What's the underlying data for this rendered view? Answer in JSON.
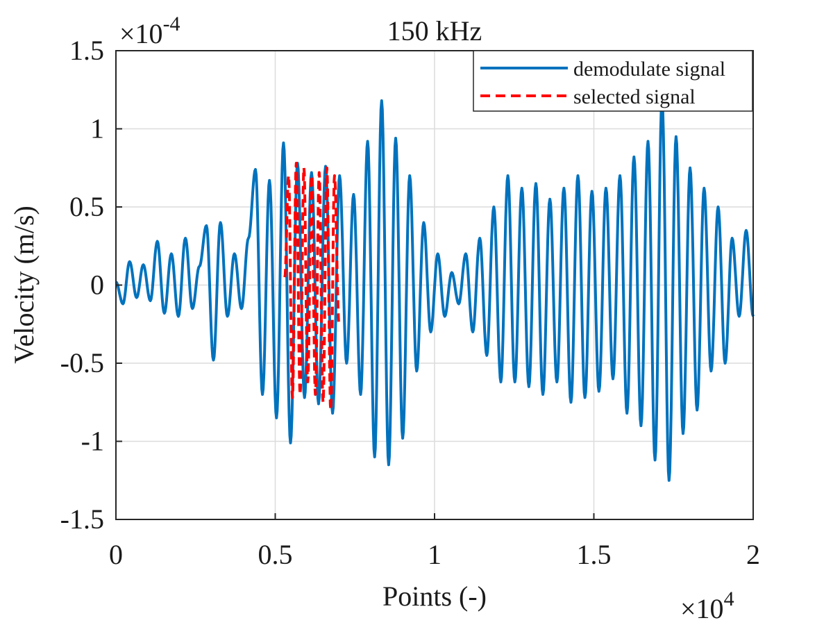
{
  "chart_data": {
    "type": "line",
    "title": "150 kHz",
    "xlabel": "Points (-)",
    "ylabel": "Velocity (m/s)",
    "x_multiplier": "×10",
    "x_multiplier_exp": "4",
    "y_multiplier": "×10",
    "y_multiplier_exp": "-4",
    "xlim": [
      0,
      20000
    ],
    "ylim": [
      -1.5,
      1.5
    ],
    "x_ticks": [
      0,
      0.5,
      1,
      1.5,
      2
    ],
    "x_tick_labels": [
      "0",
      "0.5",
      "1",
      "1.5",
      "2"
    ],
    "y_ticks": [
      -1.5,
      -1,
      -0.5,
      0,
      0.5,
      1,
      1.5
    ],
    "y_tick_labels": [
      "-1.5",
      "-1",
      "-0.5",
      "0",
      "0.5",
      "1",
      "1.5"
    ],
    "grid": true,
    "legend_position": "top-right",
    "series": [
      {
        "name": "demodulate signal",
        "color": "#0072BD",
        "style": "solid",
        "x_range": [
          0,
          20000
        ],
        "peaks": [
          [
            0,
            0.02
          ],
          [
            220,
            -0.12
          ],
          [
            430,
            0.15
          ],
          [
            650,
            -0.08
          ],
          [
            860,
            0.13
          ],
          [
            1080,
            -0.1
          ],
          [
            1300,
            0.28
          ],
          [
            1520,
            -0.18
          ],
          [
            1740,
            0.2
          ],
          [
            1960,
            -0.2
          ],
          [
            2180,
            0.3
          ],
          [
            2400,
            -0.15
          ],
          [
            2620,
            0.12
          ],
          [
            2840,
            0.38
          ],
          [
            3060,
            -0.48
          ],
          [
            3280,
            0.4
          ],
          [
            3500,
            -0.2
          ],
          [
            3720,
            0.2
          ],
          [
            3940,
            -0.15
          ],
          [
            4160,
            0.3
          ],
          [
            4380,
            0.74
          ],
          [
            4600,
            -0.7
          ],
          [
            4820,
            0.67
          ],
          [
            5040,
            -0.85
          ],
          [
            5260,
            0.91
          ],
          [
            5480,
            -1.01
          ],
          [
            5700,
            0.78
          ],
          [
            5920,
            -0.72
          ],
          [
            6140,
            0.72
          ],
          [
            6360,
            -0.76
          ],
          [
            6580,
            0.76
          ],
          [
            6800,
            -0.82
          ],
          [
            7020,
            0.7
          ],
          [
            7240,
            -0.5
          ],
          [
            7460,
            0.58
          ],
          [
            7680,
            -0.7
          ],
          [
            7900,
            0.92
          ],
          [
            8120,
            -1.1
          ],
          [
            8340,
            1.18
          ],
          [
            8560,
            -1.15
          ],
          [
            8780,
            0.94
          ],
          [
            9000,
            -0.98
          ],
          [
            9220,
            0.7
          ],
          [
            9440,
            -0.55
          ],
          [
            9660,
            0.4
          ],
          [
            9880,
            -0.3
          ],
          [
            10100,
            0.2
          ],
          [
            10320,
            -0.2
          ],
          [
            10540,
            0.08
          ],
          [
            10760,
            -0.12
          ],
          [
            10980,
            0.2
          ],
          [
            11200,
            -0.3
          ],
          [
            11420,
            0.3
          ],
          [
            11640,
            -0.45
          ],
          [
            11860,
            0.5
          ],
          [
            12080,
            -0.62
          ],
          [
            12300,
            0.7
          ],
          [
            12520,
            -0.62
          ],
          [
            12740,
            0.62
          ],
          [
            12960,
            -0.65
          ],
          [
            13180,
            0.65
          ],
          [
            13400,
            -0.7
          ],
          [
            13620,
            0.55
          ],
          [
            13840,
            -0.62
          ],
          [
            14060,
            0.62
          ],
          [
            14280,
            -0.75
          ],
          [
            14500,
            0.7
          ],
          [
            14720,
            -0.72
          ],
          [
            14940,
            0.6
          ],
          [
            15160,
            -0.68
          ],
          [
            15380,
            0.62
          ],
          [
            15600,
            -0.6
          ],
          [
            15820,
            0.7
          ],
          [
            16040,
            -0.82
          ],
          [
            16260,
            0.82
          ],
          [
            16480,
            -0.9
          ],
          [
            16700,
            0.92
          ],
          [
            16920,
            -1.12
          ],
          [
            17140,
            1.2
          ],
          [
            17360,
            -1.25
          ],
          [
            17580,
            0.95
          ],
          [
            17800,
            -0.95
          ],
          [
            18020,
            0.75
          ],
          [
            18240,
            -0.8
          ],
          [
            18460,
            0.62
          ],
          [
            18680,
            -0.55
          ],
          [
            18900,
            0.5
          ],
          [
            19120,
            -0.5
          ],
          [
            19340,
            0.3
          ],
          [
            19560,
            -0.2
          ],
          [
            19780,
            0.35
          ],
          [
            20000,
            -0.2
          ]
        ]
      },
      {
        "name": "selected signal",
        "color": "#FF0000",
        "style": "dashed",
        "x_range": [
          5300,
          7000
        ],
        "peaks": [
          [
            5300,
            0.05
          ],
          [
            5420,
            0.7
          ],
          [
            5540,
            -0.72
          ],
          [
            5660,
            0.78
          ],
          [
            5780,
            -0.7
          ],
          [
            5900,
            0.75
          ],
          [
            6020,
            -0.62
          ],
          [
            6140,
            0.7
          ],
          [
            6260,
            -0.7
          ],
          [
            6380,
            0.72
          ],
          [
            6500,
            -0.75
          ],
          [
            6620,
            0.75
          ],
          [
            6740,
            -0.8
          ],
          [
            6860,
            0.7
          ],
          [
            7000,
            -0.25
          ]
        ]
      }
    ]
  }
}
